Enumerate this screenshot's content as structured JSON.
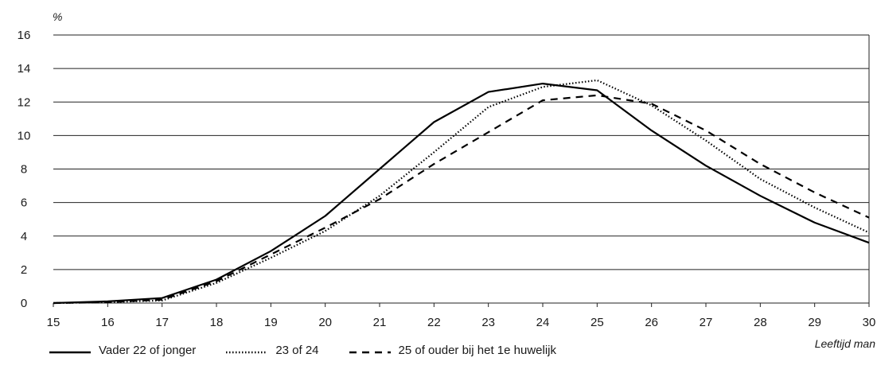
{
  "chart_data": {
    "type": "line",
    "unit_label": "%",
    "xlabel": "Leeftijd man",
    "ylabel": "",
    "x": [
      15,
      16,
      17,
      18,
      19,
      20,
      21,
      22,
      23,
      24,
      25,
      26,
      27,
      28,
      29,
      30
    ],
    "xlim": [
      15,
      30
    ],
    "ylim": [
      0,
      16
    ],
    "x_ticks": [
      15,
      16,
      17,
      18,
      19,
      20,
      21,
      22,
      23,
      24,
      25,
      26,
      27,
      28,
      29,
      30
    ],
    "y_ticks": [
      0,
      2,
      4,
      6,
      8,
      10,
      12,
      14,
      16
    ],
    "grid": "horizontal",
    "legend_position": "bottom",
    "series": [
      {
        "name": "Vader 22 of jonger",
        "dash": "solid",
        "color": "#000000",
        "values": [
          0,
          0.1,
          0.3,
          1.4,
          3.1,
          5.2,
          8.0,
          10.8,
          12.6,
          13.1,
          12.7,
          10.3,
          8.2,
          6.4,
          4.8,
          3.6
        ]
      },
      {
        "name": "23 of 24",
        "dash": "dotted",
        "color": "#000000",
        "values": [
          0,
          0.05,
          0.15,
          1.2,
          2.7,
          4.3,
          6.4,
          9.0,
          11.7,
          12.9,
          13.3,
          11.8,
          9.7,
          7.4,
          5.7,
          4.2
        ]
      },
      {
        "name": "25 of ouder bij het 1e huwelijk",
        "dash": "dashed",
        "color": "#000000",
        "values": [
          0,
          0.05,
          0.2,
          1.3,
          2.9,
          4.5,
          6.2,
          8.3,
          10.2,
          12.1,
          12.4,
          11.9,
          10.3,
          8.3,
          6.6,
          5.1
        ]
      }
    ]
  }
}
